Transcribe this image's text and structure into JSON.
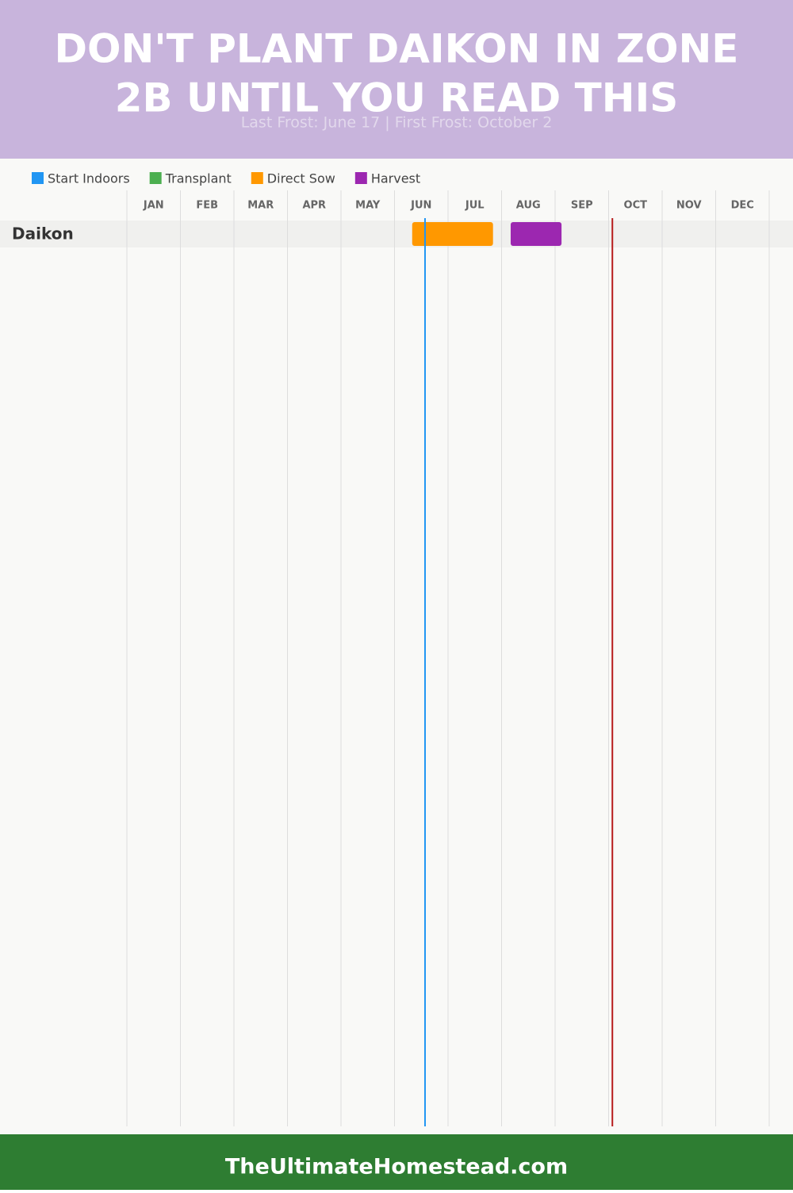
{
  "header": {
    "title_lines": [
      "DON'T PLANT DAIKON IN ZONE",
      "2B UNTIL YOU READ THIS"
    ],
    "subtitle": "Last Frost: June 17 | First Frost: October 2"
  },
  "chart_data": {
    "type": "gantt",
    "categories": [
      "Daikon"
    ],
    "series": [
      {
        "name": "Start Indoors",
        "color": "#2196f3",
        "values": [
          null
        ]
      },
      {
        "name": "Transplant",
        "color": "#4caf50",
        "values": [
          null
        ]
      },
      {
        "name": "Direct Sow",
        "color": "#ff9800",
        "values": [
          [
            5.33,
            6.84
          ]
        ]
      },
      {
        "name": "Harvest",
        "color": "#9c27b0",
        "values": [
          [
            7.17,
            8.12
          ]
        ]
      }
    ],
    "xlim": [
      0,
      12
    ],
    "xticks": [
      {
        "value": 0,
        "label": "JAN"
      },
      {
        "value": 1,
        "label": "FEB"
      },
      {
        "value": 2,
        "label": "MAR"
      },
      {
        "value": 3,
        "label": "APR"
      },
      {
        "value": 4,
        "label": "MAY"
      },
      {
        "value": 5,
        "label": "JUN"
      },
      {
        "value": 6,
        "label": "JUL"
      },
      {
        "value": 7,
        "label": "AUG"
      },
      {
        "value": 8,
        "label": "SEP"
      },
      {
        "value": 9,
        "label": "OCT"
      },
      {
        "value": 10,
        "label": "NOV"
      },
      {
        "value": 11,
        "label": "DEC"
      }
    ],
    "grid": true,
    "frost_lines": [
      {
        "value": 5.57,
        "color": "#2196f3"
      },
      {
        "value": 9.07,
        "color": "#b71c1c"
      }
    ]
  },
  "footer": {
    "text": "TheUltimateHomestead.com"
  }
}
